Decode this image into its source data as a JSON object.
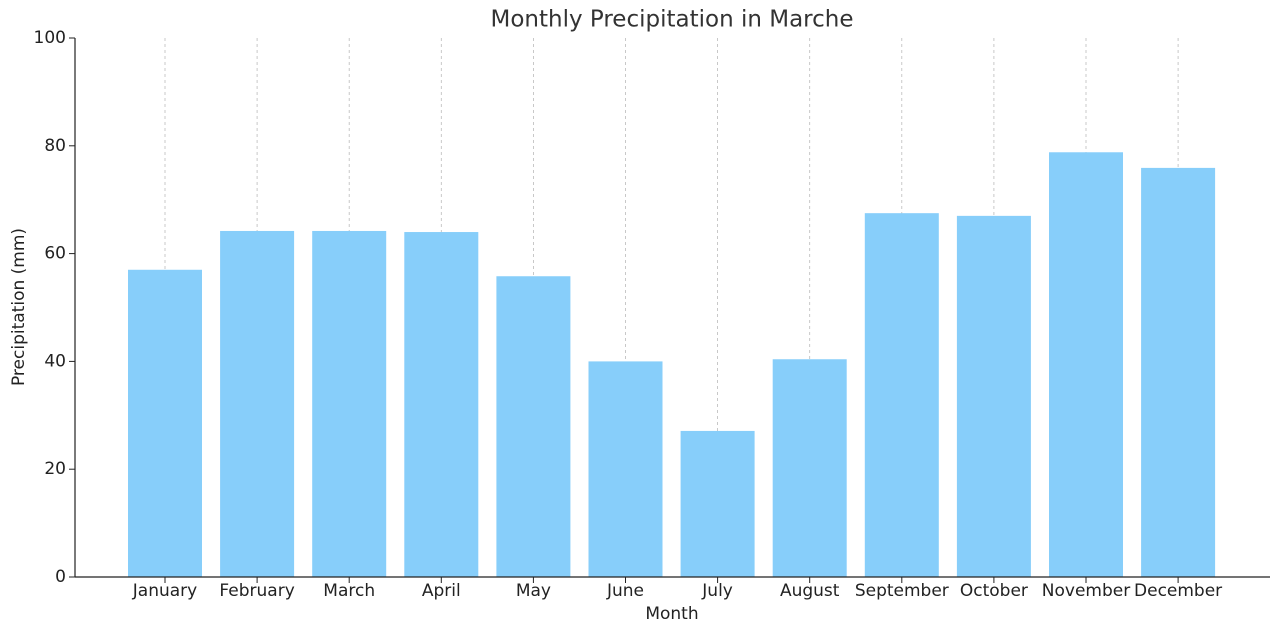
{
  "chart_data": {
    "type": "bar",
    "title": "Monthly Precipitation in Marche",
    "x_label": "Month",
    "y_label": "Precipitation (mm)",
    "categories": [
      "January",
      "February",
      "March",
      "April",
      "May",
      "June",
      "July",
      "August",
      "September",
      "October",
      "November",
      "December"
    ],
    "values": [
      57.0,
      64.2,
      64.2,
      64.0,
      55.8,
      40.0,
      27.1,
      40.4,
      67.5,
      67.0,
      78.8,
      75.9
    ],
    "color": "#87cefa",
    "ylim": [
      0,
      100
    ],
    "yticks": [
      0,
      20,
      40,
      60,
      80,
      100
    ],
    "grid": "x"
  }
}
